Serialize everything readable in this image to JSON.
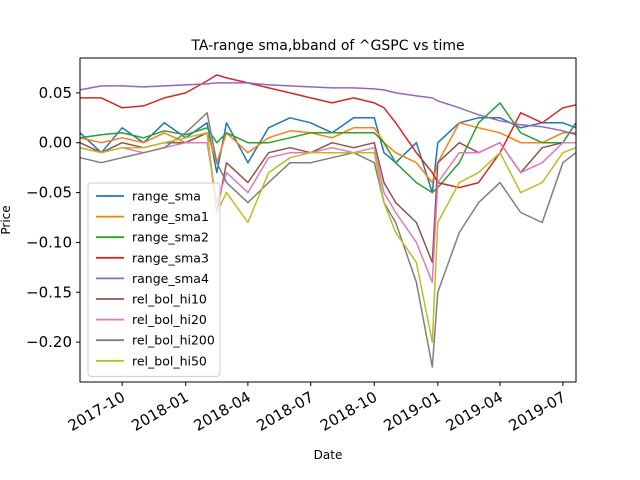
{
  "chart_data": {
    "type": "line",
    "title": "TA-range sma,bband of ^GSPC vs time",
    "xlabel": "Date",
    "ylabel": "Price",
    "x_ticks": [
      "2017-10",
      "2018-01",
      "2018-04",
      "2018-07",
      "2018-10",
      "2019-01",
      "2019-04",
      "2019-07"
    ],
    "y_ticks": [
      "0.05",
      "0.00",
      "−0.05",
      "−0.10",
      "−0.15",
      "−0.20"
    ],
    "xlim": [
      "2017-08-01",
      "2019-07-20"
    ],
    "ylim": [
      -0.24,
      0.085
    ],
    "grid": false,
    "legend_position": "lower-left",
    "x_dates": [
      "2017-08-01",
      "2017-09-01",
      "2017-10-01",
      "2017-11-01",
      "2017-12-01",
      "2018-01-01",
      "2018-02-01",
      "2018-02-15",
      "2018-03-01",
      "2018-04-01",
      "2018-05-01",
      "2018-06-01",
      "2018-07-01",
      "2018-08-01",
      "2018-09-01",
      "2018-10-01",
      "2018-10-15",
      "2018-11-01",
      "2018-12-01",
      "2018-12-24",
      "2019-01-01",
      "2019-02-01",
      "2019-03-01",
      "2019-04-01",
      "2019-05-01",
      "2019-06-01",
      "2019-07-01",
      "2019-07-20"
    ],
    "series": [
      {
        "name": "range_sma",
        "color": "#1f77b4",
        "values": [
          0.01,
          -0.01,
          0.015,
          0.0,
          0.02,
          0.005,
          0.02,
          -0.03,
          0.02,
          -0.02,
          0.015,
          0.025,
          0.02,
          0.01,
          0.025,
          0.025,
          -0.01,
          -0.02,
          0.0,
          -0.05,
          0.0,
          0.02,
          0.025,
          0.025,
          0.015,
          0.02,
          0.02,
          0.015
        ]
      },
      {
        "name": "range_sma1",
        "color": "#ff7f0e",
        "values": [
          0.005,
          0.0,
          0.005,
          0.0,
          0.01,
          0.0,
          0.01,
          -0.02,
          0.01,
          -0.01,
          0.005,
          0.012,
          0.01,
          0.005,
          0.015,
          0.015,
          0.0,
          -0.01,
          -0.02,
          -0.04,
          -0.02,
          0.02,
          0.015,
          0.01,
          0.0,
          0.0,
          0.01,
          0.01
        ]
      },
      {
        "name": "range_sma2",
        "color": "#2ca02c",
        "values": [
          0.005,
          0.008,
          0.01,
          0.005,
          0.012,
          0.008,
          0.015,
          0.0,
          0.01,
          0.0,
          0.0,
          0.005,
          0.01,
          0.01,
          0.01,
          0.01,
          0.0,
          -0.02,
          -0.04,
          -0.05,
          -0.045,
          -0.02,
          0.02,
          0.04,
          0.01,
          0.0,
          0.0,
          0.02
        ]
      },
      {
        "name": "range_sma3",
        "color": "#d62728",
        "values": [
          0.045,
          0.045,
          0.035,
          0.037,
          0.045,
          0.05,
          0.062,
          0.068,
          0.065,
          0.06,
          0.055,
          0.05,
          0.045,
          0.04,
          0.045,
          0.04,
          0.035,
          0.02,
          -0.01,
          -0.03,
          -0.04,
          -0.045,
          -0.04,
          -0.01,
          0.03,
          0.02,
          0.035,
          0.038
        ]
      },
      {
        "name": "range_sma4",
        "color": "#9467bd",
        "values": [
          0.053,
          0.057,
          0.057,
          0.056,
          0.057,
          0.058,
          0.059,
          0.06,
          0.06,
          0.06,
          0.058,
          0.057,
          0.056,
          0.055,
          0.055,
          0.054,
          0.053,
          0.05,
          0.047,
          0.045,
          0.042,
          0.035,
          0.028,
          0.022,
          0.018,
          0.016,
          0.012,
          0.008
        ]
      },
      {
        "name": "rel_bol_hi10",
        "color": "#8c564b",
        "values": [
          0.0,
          -0.01,
          0.0,
          -0.005,
          0.0,
          0.0,
          0.01,
          -0.07,
          -0.02,
          -0.04,
          -0.01,
          -0.005,
          -0.01,
          0.0,
          -0.005,
          0.0,
          -0.04,
          -0.06,
          -0.08,
          -0.12,
          -0.02,
          0.0,
          -0.01,
          0.0,
          -0.03,
          -0.005,
          0.0,
          0.0
        ]
      },
      {
        "name": "rel_bol_hi20",
        "color": "#e377c2",
        "values": [
          -0.005,
          -0.01,
          -0.005,
          -0.01,
          -0.005,
          0.0,
          0.0,
          -0.06,
          -0.03,
          -0.05,
          -0.015,
          -0.01,
          -0.01,
          -0.005,
          -0.01,
          -0.005,
          -0.05,
          -0.07,
          -0.1,
          -0.14,
          -0.04,
          -0.01,
          -0.01,
          0.0,
          -0.03,
          -0.02,
          0.0,
          0.0
        ]
      },
      {
        "name": "rel_bol_hi200",
        "color": "#7f7f7f",
        "values": [
          -0.015,
          -0.02,
          -0.015,
          -0.01,
          -0.005,
          0.01,
          0.03,
          -0.02,
          -0.04,
          -0.06,
          -0.04,
          -0.02,
          -0.02,
          -0.015,
          -0.01,
          -0.02,
          -0.06,
          -0.08,
          -0.14,
          -0.225,
          -0.15,
          -0.09,
          -0.06,
          -0.04,
          -0.07,
          -0.08,
          -0.02,
          -0.01
        ]
      },
      {
        "name": "rel_bol_hi50",
        "color": "#bcbd22",
        "values": [
          -0.005,
          -0.01,
          -0.005,
          -0.005,
          0.0,
          0.005,
          0.01,
          -0.07,
          -0.05,
          -0.08,
          -0.03,
          -0.015,
          -0.01,
          -0.01,
          -0.01,
          -0.01,
          -0.06,
          -0.09,
          -0.12,
          -0.2,
          -0.08,
          -0.04,
          -0.03,
          -0.01,
          -0.05,
          -0.04,
          -0.01,
          -0.005
        ]
      }
    ]
  }
}
